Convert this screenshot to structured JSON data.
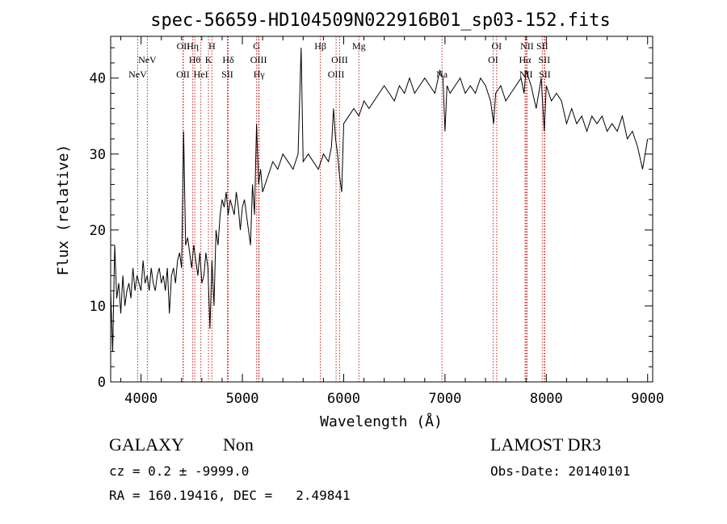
{
  "chart_data": {
    "type": "line",
    "title": "spec-56659-HD104509N022916B01_sp03-152.fits",
    "xlabel": "Wavelength (Å)",
    "ylabel": "Flux (relative)",
    "xlim": [
      3700,
      9050
    ],
    "ylim": [
      0,
      45.5
    ],
    "xticks": [
      4000,
      5000,
      6000,
      7000,
      8000,
      9000
    ],
    "yticks": [
      0,
      10,
      20,
      30,
      40
    ],
    "grid": false,
    "line_color": "#000000",
    "marker_color": "#cc2222",
    "series": [
      {
        "x": [
          3700,
          3720,
          3740,
          3760,
          3780,
          3800,
          3820,
          3840,
          3860,
          3880,
          3900,
          3920,
          3940,
          3960,
          3980,
          4000,
          4020,
          4040,
          4060,
          4080,
          4100,
          4120,
          4140,
          4160,
          4180,
          4200,
          4220,
          4240,
          4260,
          4280,
          4300,
          4320,
          4340,
          4360,
          4380,
          4400,
          4420,
          4440,
          4460,
          4480,
          4500,
          4520,
          4540,
          4560,
          4580,
          4600,
          4620,
          4640,
          4660,
          4680,
          4700,
          4720,
          4740,
          4760,
          4780,
          4800,
          4820,
          4840,
          4860,
          4880,
          4900,
          4920,
          4940,
          4960,
          4980,
          5000,
          5020,
          5040,
          5060,
          5080,
          5100,
          5120,
          5140,
          5160,
          5180,
          5200,
          5250,
          5300,
          5350,
          5400,
          5450,
          5500,
          5550,
          5580,
          5600,
          5650,
          5700,
          5750,
          5800,
          5850,
          5880,
          5900,
          5920,
          5940,
          5960,
          5980,
          6000,
          6050,
          6100,
          6150,
          6200,
          6250,
          6300,
          6350,
          6400,
          6450,
          6500,
          6550,
          6600,
          6650,
          6700,
          6750,
          6800,
          6850,
          6900,
          6950,
          6980,
          7000,
          7020,
          7050,
          7100,
          7150,
          7200,
          7250,
          7300,
          7350,
          7400,
          7450,
          7480,
          7500,
          7550,
          7600,
          7650,
          7700,
          7750,
          7780,
          7800,
          7850,
          7900,
          7950,
          7980,
          8000,
          8050,
          8100,
          8150,
          8200,
          8250,
          8300,
          8350,
          8400,
          8450,
          8500,
          8550,
          8600,
          8650,
          8700,
          8750,
          8800,
          8850,
          8900,
          8950,
          9000
        ],
        "y": [
          12,
          4,
          18,
          11,
          13,
          9,
          14,
          10,
          12,
          13,
          11,
          15,
          12,
          14,
          13,
          12,
          16,
          13,
          14,
          12,
          15,
          13,
          12,
          14,
          15,
          13,
          14,
          12,
          15,
          9,
          14,
          15,
          13,
          16,
          17,
          15,
          33,
          18,
          19,
          17,
          15,
          18,
          16,
          14,
          17,
          13,
          14,
          17,
          15,
          7,
          16,
          10,
          20,
          18,
          22,
          24,
          23,
          25,
          22,
          24,
          23,
          22,
          25,
          23,
          20,
          23,
          24,
          22,
          20,
          18,
          26,
          22,
          34,
          26,
          28,
          25,
          27,
          29,
          28,
          30,
          29,
          28,
          30,
          44,
          29,
          30,
          29,
          28,
          30,
          29,
          31,
          36,
          32,
          30,
          27,
          25,
          34,
          35,
          36,
          35,
          37,
          36,
          37,
          38,
          39,
          38,
          37,
          39,
          38,
          40,
          38,
          39,
          40,
          39,
          38,
          41,
          40,
          33,
          39,
          38,
          39,
          40,
          38,
          39,
          38,
          40,
          39,
          37,
          34,
          38,
          39,
          37,
          38,
          39,
          40,
          38,
          41,
          39,
          36,
          40,
          33,
          39,
          37,
          38,
          37,
          34,
          36,
          34,
          35,
          33,
          35,
          34,
          35,
          33,
          34,
          33,
          35,
          32,
          33,
          31,
          28,
          32
        ]
      }
    ],
    "lines": [
      {
        "name": "NeV",
        "x": 3967,
        "row": 3
      },
      {
        "name": "NeV",
        "x": 4062,
        "row": 1
      },
      {
        "name": "OII",
        "x": 4413,
        "row": 3
      },
      {
        "name": "OII",
        "x": 4417,
        "row": 0
      },
      {
        "name": "Hη",
        "x": 4510,
        "row": 0
      },
      {
        "name": "Hθ",
        "x": 4530,
        "row": 1
      },
      {
        "name": "HeI",
        "x": 4590,
        "row": 3
      },
      {
        "name": "H",
        "x": 4700,
        "row": 0
      },
      {
        "name": "K",
        "x": 4665,
        "row": 1
      },
      {
        "name": "Hδ",
        "x": 4860,
        "row": 1
      },
      {
        "name": "SII",
        "x": 4852,
        "row": 3
      },
      {
        "name": "G",
        "x": 5140,
        "row": 0
      },
      {
        "name": "OIII",
        "x": 5160,
        "row": 1
      },
      {
        "name": "Hγ",
        "x": 5165,
        "row": 3
      },
      {
        "name": "Hβ",
        "x": 5770,
        "row": 0
      },
      {
        "name": "OIII",
        "x": 5960,
        "row": 1
      },
      {
        "name": "OIII",
        "x": 5925,
        "row": 3
      },
      {
        "name": "Mg",
        "x": 6150,
        "row": 0
      },
      {
        "name": "Na",
        "x": 6970,
        "row": 2
      },
      {
        "name": "OI",
        "x": 7510,
        "row": 0
      },
      {
        "name": "OI",
        "x": 7475,
        "row": 1
      },
      {
        "name": "NII",
        "x": 7810,
        "row": 0
      },
      {
        "name": "Hα",
        "x": 7790,
        "row": 1
      },
      {
        "name": "NII",
        "x": 7800,
        "row": 2
      },
      {
        "name": "SII",
        "x": 7960,
        "row": 0
      },
      {
        "name": "SII",
        "x": 7980,
        "row": 1
      },
      {
        "name": "SII",
        "x": 7985,
        "row": 2
      }
    ]
  },
  "info": {
    "object_class": "GALAXY",
    "subclass": "Non",
    "survey": "LAMOST DR3",
    "cz": "cz = 0.2 ± -9999.0",
    "obs_date": "Obs-Date: 20140101",
    "coords": "RA = 160.19416, DEC =   2.49841"
  }
}
